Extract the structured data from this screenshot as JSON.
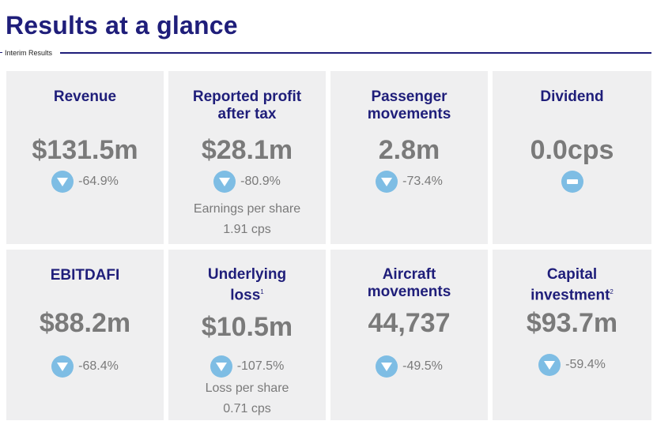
{
  "header": {
    "title": "Results at a glance",
    "subtitle": "Interim Results"
  },
  "colors": {
    "title": "#1f1e7a",
    "card_background": "#efeff0",
    "value_text": "#7a7a7a",
    "indicator": "#7ebde4"
  },
  "cards": [
    {
      "label": "Revenue",
      "value": "$131.5m",
      "change": "-64.9%",
      "indicator_icon": "down-arrow-icon"
    },
    {
      "label_line1": "Reported profit",
      "label_line2": "after tax",
      "value": "$28.1m",
      "change": "-80.9%",
      "indicator_icon": "down-arrow-icon",
      "extra_line1": "Earnings per share",
      "extra_line2": "1.91 cps"
    },
    {
      "label_line1": "Passenger",
      "label_line2": "movements",
      "value": "2.8m",
      "change": "-73.4%",
      "indicator_icon": "down-arrow-icon"
    },
    {
      "label": "Dividend",
      "value": "0.0cps",
      "indicator_icon": "neutral-dash-icon"
    },
    {
      "label": "EBITDAFI",
      "value": "$88.2m",
      "change": "-68.4%",
      "indicator_icon": "down-arrow-icon"
    },
    {
      "label_line1": "Underlying",
      "label_line2": "loss",
      "footnote": "1",
      "value": "$10.5m",
      "change": "-107.5%",
      "indicator_icon": "down-arrow-icon",
      "extra_line1": "Loss per share",
      "extra_line2": "0.71 cps"
    },
    {
      "label_line1": "Aircraft",
      "label_line2": "movements",
      "value": "44,737",
      "change": "-49.5%",
      "indicator_icon": "down-arrow-icon"
    },
    {
      "label_line1": "Capital",
      "label_line2": "investment",
      "footnote": "2",
      "value": "$93.7m",
      "change": "-59.4%",
      "indicator_icon": "down-arrow-icon"
    }
  ]
}
